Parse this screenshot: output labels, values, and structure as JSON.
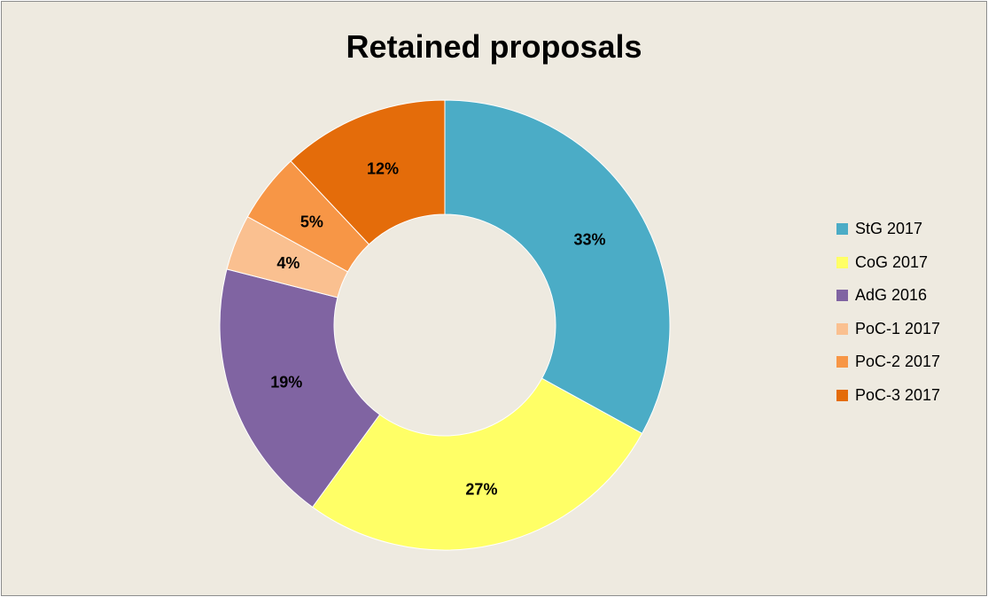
{
  "chart_data": {
    "type": "pie",
    "title": "Retained proposals",
    "legend_position": "right",
    "slices": [
      {
        "label": "StG 2017",
        "value": 33,
        "display": "33%",
        "color": "#4bacc6"
      },
      {
        "label": "CoG 2017",
        "value": 27,
        "display": "27%",
        "color": "#ffff66"
      },
      {
        "label": "AdG 2016",
        "value": 19,
        "display": "19%",
        "color": "#8064a2"
      },
      {
        "label": "PoC-1 2017",
        "value": 4,
        "display": "4%",
        "color": "#fac090"
      },
      {
        "label": "PoC-2 2017",
        "value": 5,
        "display": "5%",
        "color": "#f79646"
      },
      {
        "label": "PoC-3 2017",
        "value": 12,
        "display": "12%",
        "color": "#e46c0a"
      }
    ]
  }
}
